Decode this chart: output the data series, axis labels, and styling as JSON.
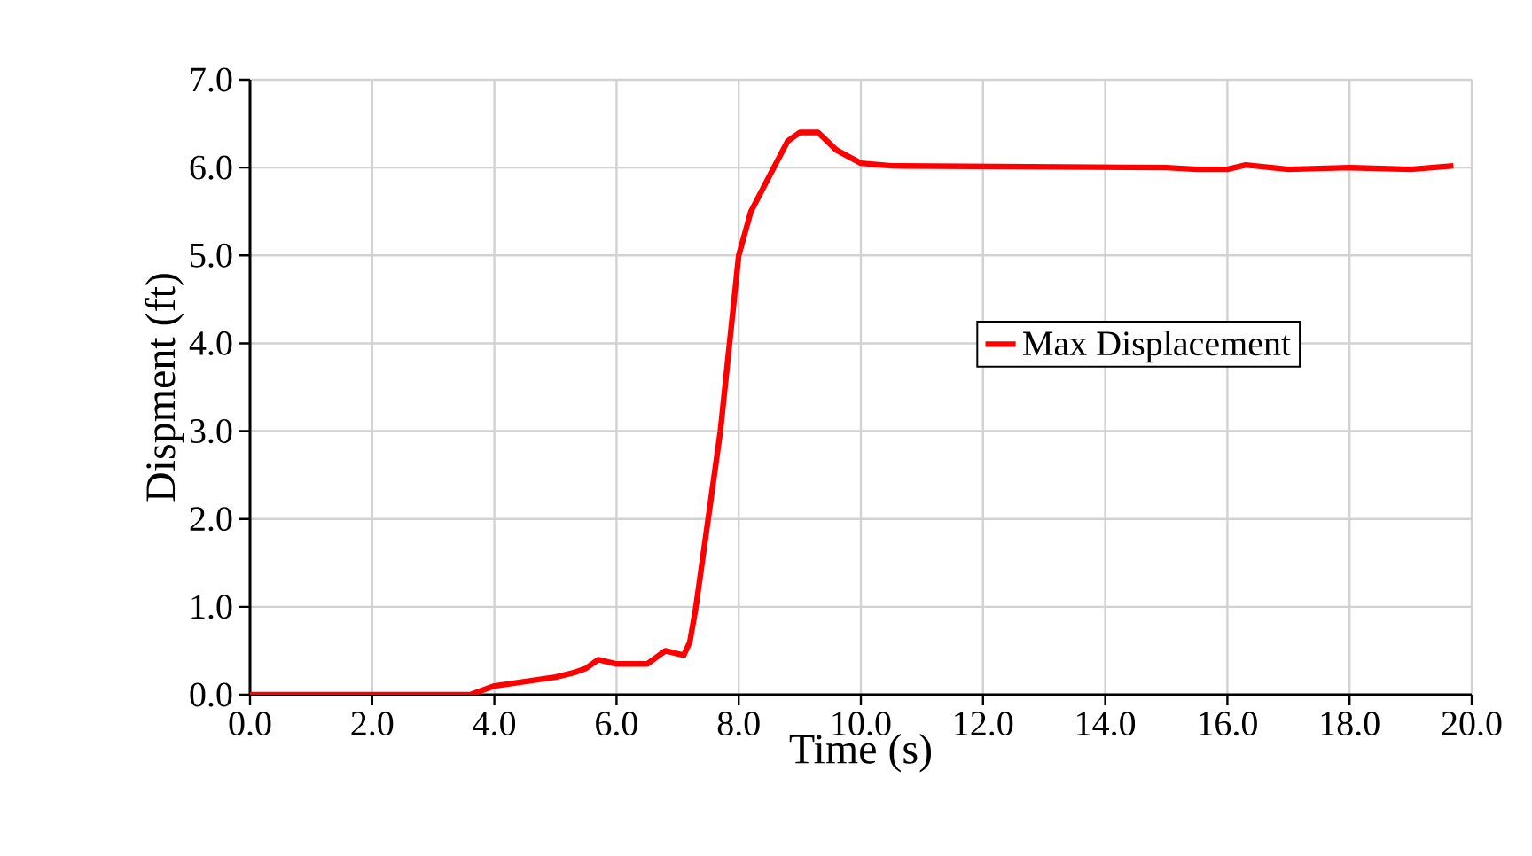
{
  "chart_data": {
    "type": "line",
    "xlabel": "Time (s)",
    "ylabel": "Dispment (ft)",
    "x": [
      0,
      1,
      2,
      3,
      3.6,
      4.0,
      4.5,
      5.0,
      5.3,
      5.5,
      5.7,
      6.0,
      6.5,
      6.8,
      7.1,
      7.2,
      7.3,
      7.5,
      7.7,
      7.85,
      8.0,
      8.2,
      8.5,
      8.8,
      9.0,
      9.3,
      9.6,
      10.0,
      10.5,
      15.0,
      15.5,
      16.0,
      16.3,
      17.0,
      18.0,
      19.0,
      19.7
    ],
    "series": [
      {
        "name": "Max Displacement",
        "color": "#ff0000",
        "values": [
          0,
          0,
          0,
          0,
          0,
          0.1,
          0.15,
          0.2,
          0.25,
          0.3,
          0.4,
          0.35,
          0.35,
          0.5,
          0.45,
          0.6,
          1.0,
          2.0,
          3.0,
          4.0,
          5.0,
          5.5,
          5.9,
          6.3,
          6.4,
          6.4,
          6.2,
          6.05,
          6.02,
          6.0,
          5.98,
          5.98,
          6.03,
          5.98,
          6.0,
          5.98,
          6.02
        ]
      }
    ],
    "xlim": [
      0,
      20
    ],
    "ylim": [
      0,
      7
    ],
    "xticks": [
      {
        "value": 0,
        "label": "0.0"
      },
      {
        "value": 2,
        "label": "2.0"
      },
      {
        "value": 4,
        "label": "4.0"
      },
      {
        "value": 6,
        "label": "6.0"
      },
      {
        "value": 8,
        "label": "8.0"
      },
      {
        "value": 10,
        "label": "10.0"
      },
      {
        "value": 12,
        "label": "12.0"
      },
      {
        "value": 14,
        "label": "14.0"
      },
      {
        "value": 16,
        "label": "16.0"
      },
      {
        "value": 18,
        "label": "18.0"
      },
      {
        "value": 20,
        "label": "20.0"
      }
    ],
    "yticks": [
      {
        "value": 0,
        "label": "0.0"
      },
      {
        "value": 1,
        "label": "1.0"
      },
      {
        "value": 2,
        "label": "2.0"
      },
      {
        "value": 3,
        "label": "3.0"
      },
      {
        "value": 4,
        "label": "4.0"
      },
      {
        "value": 5,
        "label": "5.0"
      },
      {
        "value": 6,
        "label": "6.0"
      },
      {
        "value": 7,
        "label": "7.0"
      }
    ],
    "grid": true,
    "legend": "right",
    "marker": "none",
    "line_style": "solid"
  }
}
